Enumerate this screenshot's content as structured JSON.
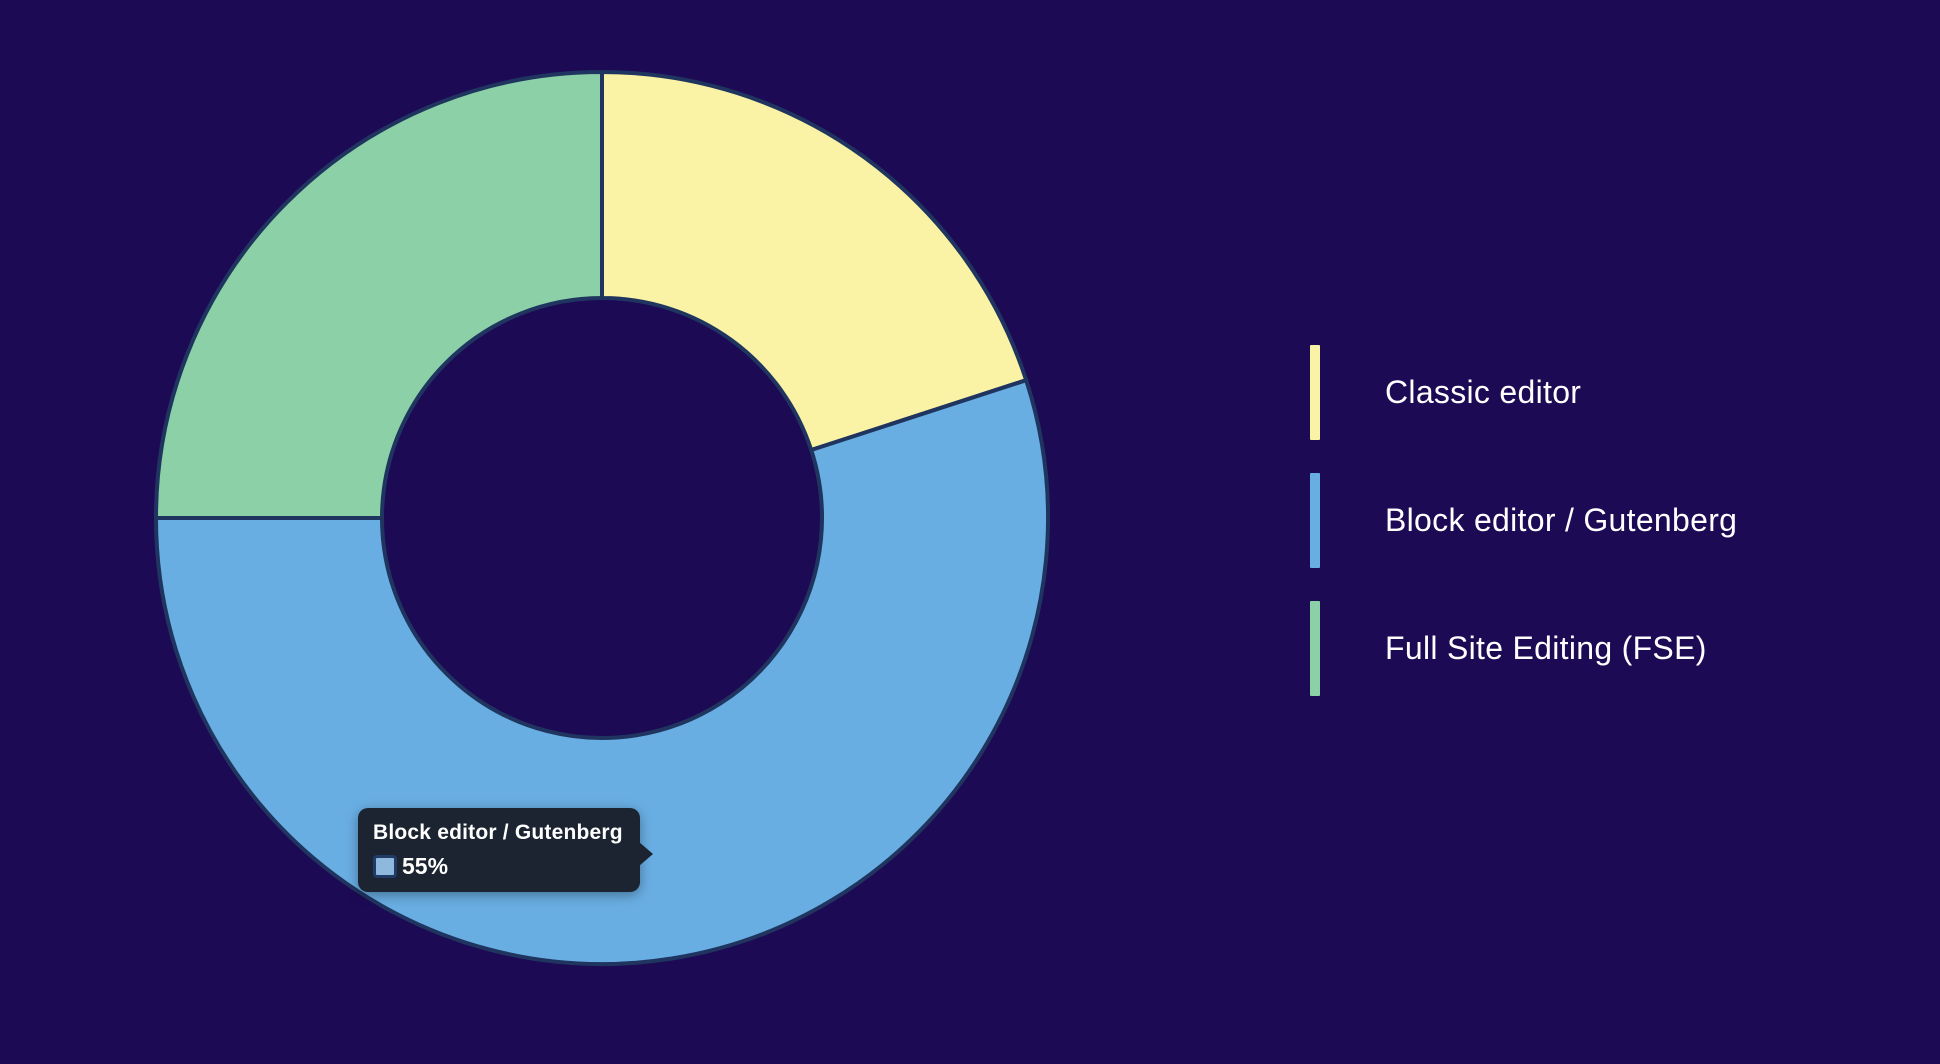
{
  "page": {
    "background_color": "#1d0a55"
  },
  "chart_data": {
    "type": "pie",
    "subtype": "donut",
    "categories": [
      "Classic editor",
      "Block editor / Gutenberg",
      "Full Site Editing (FSE)"
    ],
    "values": [
      20,
      55,
      25
    ],
    "unit": "%",
    "colors": [
      "#faf2a4",
      "#69aee3",
      "#8bd0a6"
    ],
    "stroke_color": "#1f3560",
    "stroke_width": 4,
    "start_angle_deg": 0,
    "clockwise": true,
    "center": [
      602,
      518
    ],
    "outer_radius": 446,
    "inner_radius": 220,
    "legend_position": "right",
    "title": ""
  },
  "legend": {
    "items": [
      {
        "label": "Classic editor",
        "color": "#faf2a4"
      },
      {
        "label": "Block editor / Gutenberg",
        "color": "#69aee3"
      },
      {
        "label": "Full Site Editing (FSE)",
        "color": "#8bd0a6"
      }
    ]
  },
  "tooltip": {
    "title": "Block editor / Gutenberg",
    "value": "55%",
    "swatch_color": "#8fb9dc",
    "swatch_border_color": "#203c66",
    "background_color": "#1b2430"
  }
}
